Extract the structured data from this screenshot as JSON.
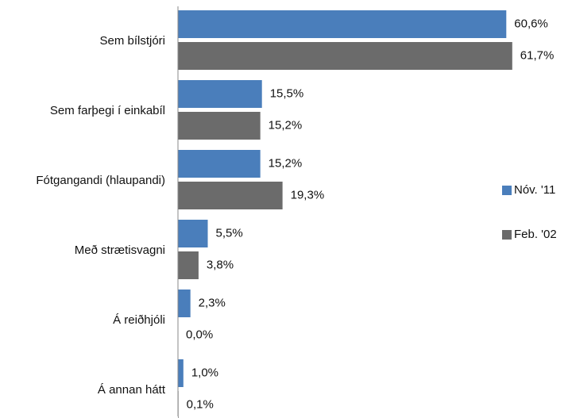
{
  "chart_data": {
    "type": "bar",
    "orientation": "horizontal",
    "categories": [
      "Sem bílstjóri",
      "Sem farþegi í einkabíl",
      "Fótgangandi (hlaupandi)",
      "Með strætisvagni",
      "Á reiðhjóli",
      "Á annan hátt"
    ],
    "series": [
      {
        "name": "Nóv. '11",
        "color": "#4a7ebb",
        "values": [
          60.6,
          15.5,
          15.2,
          5.5,
          2.3,
          1.0
        ],
        "value_labels": [
          "60,6%",
          "15,5%",
          "15,2%",
          "5,5%",
          "2,3%",
          "1,0%"
        ]
      },
      {
        "name": "Feb. '02",
        "color": "#6b6b6b",
        "values": [
          61.7,
          15.2,
          19.3,
          3.8,
          0.0,
          0.1
        ],
        "value_labels": [
          "61,7%",
          "15,2%",
          "19,3%",
          "3,8%",
          "0,0%",
          "0,1%"
        ]
      }
    ],
    "legend": "right"
  }
}
